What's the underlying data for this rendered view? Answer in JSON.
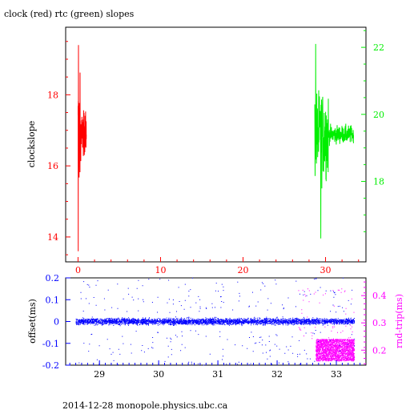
{
  "footer": "2014-12-28  monopole.physics.ubc.ca",
  "colors": {
    "clock": "#ff0000",
    "rtc": "#00ee00",
    "offset": "#0000ff",
    "rndtrip": "#ff00ff",
    "axis": "#000000"
  },
  "chart_data": [
    {
      "type": "line",
      "title": "clock (red) rtc (green) slopes",
      "xlabel": "",
      "ylabel": "clockslope",
      "xlim": [
        -1.5,
        34.9
      ],
      "x_ticks": [
        0,
        10,
        20,
        30
      ],
      "ylim": [
        13.3,
        19.9
      ],
      "y_ticks": [
        14,
        16,
        18
      ],
      "y2lim": [
        15.6,
        22.6
      ],
      "y2_ticks": [
        18,
        20,
        22
      ],
      "grid": false,
      "series": [
        {
          "axis": "left",
          "color": "#ff0000",
          "x_range": [
            0.0,
            1.0
          ],
          "y_center": 16.9,
          "y_min": 13.6,
          "y_max": 19.4
        },
        {
          "axis": "right",
          "color": "#00ee00",
          "x_range": [
            28.7,
            33.4
          ],
          "y_center": 19.4,
          "y_min": 16.3,
          "y_max": 22.1
        }
      ]
    },
    {
      "type": "scatter",
      "xlabel": "",
      "ylabel": "offset(ms)",
      "y2label": "rnd-trip(ms)",
      "xlim": [
        28.43,
        33.5
      ],
      "x_ticks": [
        29,
        30,
        31,
        32,
        33
      ],
      "ylim": [
        -0.2,
        0.2
      ],
      "y_ticks": [
        -0.2,
        -0.1,
        0,
        0.1,
        0.2
      ],
      "y2lim": [
        0.145,
        0.465
      ],
      "y2_ticks": [
        0.2,
        0.3,
        0.4
      ],
      "grid": false,
      "series": [
        {
          "axis": "left",
          "color": "#0000ff",
          "x_range": [
            28.6,
            33.3
          ],
          "y_center": 0.0,
          "y_band": 0.02,
          "outlier_max": 0.2
        },
        {
          "axis": "right",
          "color": "#ff00ff",
          "x_range": [
            32.65,
            33.3
          ],
          "y_center": 0.2,
          "y_band": 0.04,
          "outlier_max": 0.43
        }
      ]
    }
  ]
}
